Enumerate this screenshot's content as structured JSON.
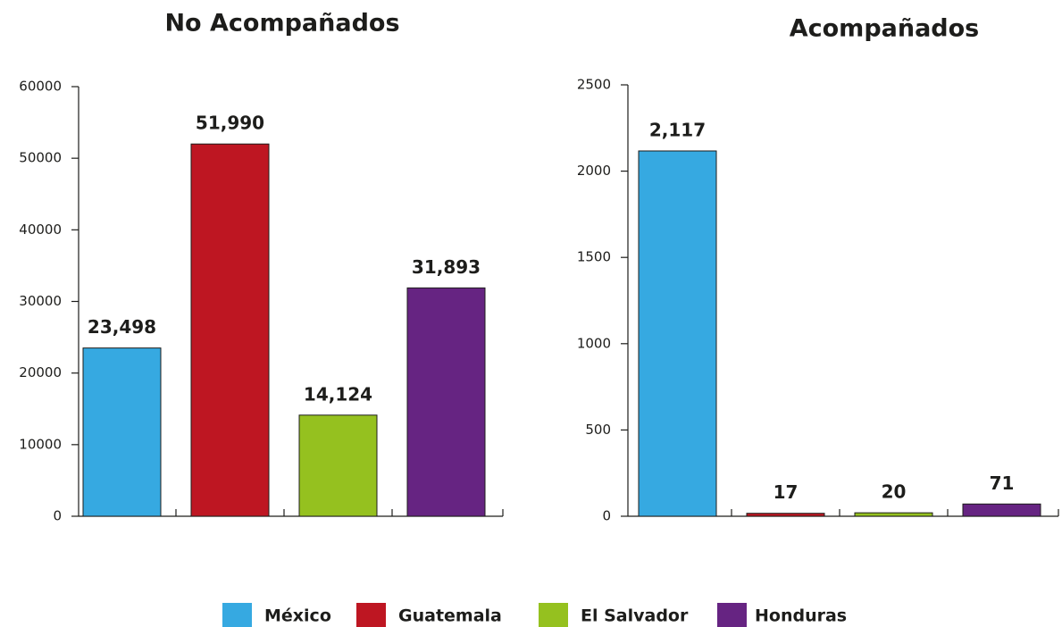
{
  "chart_data": [
    {
      "type": "bar",
      "title": "No Acompañados",
      "categories": [
        "México",
        "Guatemala",
        "El Salvador",
        "Honduras"
      ],
      "values": [
        23498,
        51990,
        14124,
        31893
      ],
      "value_labels": [
        "23,498",
        "51,990",
        "14,124",
        "31,893"
      ],
      "colors": [
        "#36a9e1",
        "#be1622",
        "#95c11f",
        "#662482"
      ],
      "ylim": [
        0,
        60000
      ],
      "yticks": [
        0,
        10000,
        20000,
        30000,
        40000,
        50000,
        60000
      ]
    },
    {
      "type": "bar",
      "title": "Acompañados",
      "categories": [
        "México",
        "Guatemala",
        "El Salvador",
        "Honduras"
      ],
      "values": [
        2117,
        17,
        20,
        71
      ],
      "value_labels": [
        "2,117",
        "17",
        "20",
        "71"
      ],
      "colors": [
        "#36a9e1",
        "#be1622",
        "#95c11f",
        "#662482"
      ],
      "ylim": [
        0,
        2500
      ],
      "yticks": [
        0,
        500,
        1000,
        1500,
        2000,
        2500
      ]
    }
  ]
}
